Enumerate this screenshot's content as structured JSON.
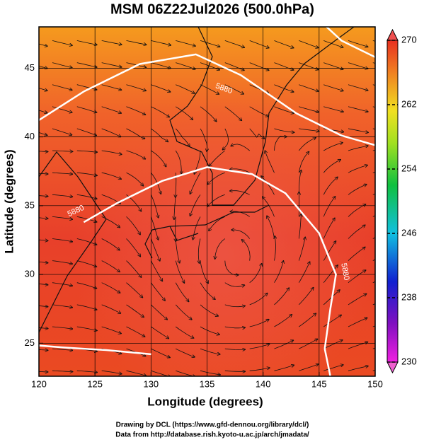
{
  "map": {
    "title": "MSM 06Z22Jul2026 (500.0hPa)",
    "xlabel": "Longitude (degrees)",
    "ylabel": "Latitude  (degrees)",
    "xlim": [
      120,
      150
    ],
    "ylim": [
      22.6,
      48
    ],
    "xticks": [
      120,
      125,
      130,
      135,
      140,
      145,
      150
    ],
    "yticks": [
      25,
      30,
      35,
      40,
      45
    ],
    "colorbar": {
      "lim": [
        230,
        270
      ],
      "ticks": [
        230,
        238,
        246,
        254,
        262,
        270
      ]
    },
    "contour_label": "5880",
    "credits": [
      "Drawing by DCL (https://www.gfd-dennou.org/library/dcl/)",
      "Data from http://database.rish.kyoto-u.ac.jp/arch/jmadata/"
    ]
  }
}
